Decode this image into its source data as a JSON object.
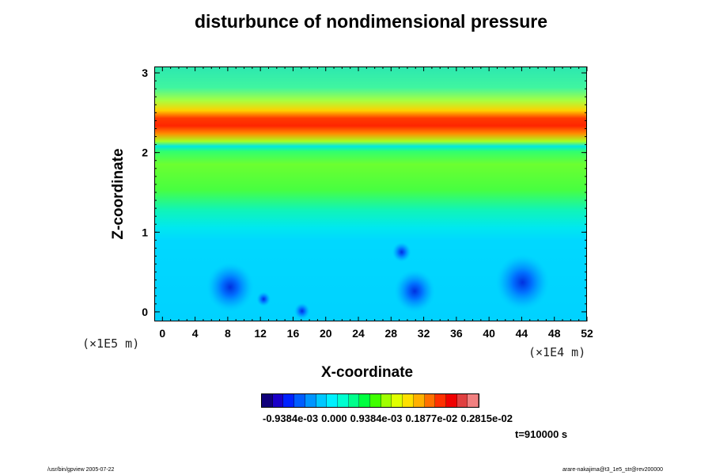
{
  "chart_data": {
    "type": "heatmap",
    "title": "disturbunce of nondimensional pressure",
    "xlabel": "X-coordinate",
    "ylabel": "Z-coordinate",
    "x_scale_note": "(×1E4 m)",
    "y_scale_note": "(×1E5 m)",
    "x_ticks": [
      0,
      4,
      8,
      12,
      16,
      20,
      24,
      28,
      32,
      36,
      40,
      44,
      48,
      52
    ],
    "y_ticks": [
      0,
      1,
      2,
      3
    ],
    "xlim": [
      -1,
      52
    ],
    "ylim": [
      -0.12,
      3.08
    ],
    "colorbar": {
      "labels": [
        "-0.9384e-03",
        "0.000",
        "0.9384e-03",
        "0.1877e-02",
        "0.2815e-02"
      ],
      "colors": [
        "#10007a",
        "#1a00c8",
        "#0022ff",
        "#005dff",
        "#0095ff",
        "#00c8ff",
        "#00f0ff",
        "#00ffd0",
        "#00ff8c",
        "#00ff40",
        "#40ff00",
        "#a0ff00",
        "#e0ff00",
        "#ffe000",
        "#ffb000",
        "#ff7000",
        "#ff3000",
        "#f00000",
        "#e04040",
        "#f08080"
      ]
    },
    "time_label": "t=910000 s",
    "features": {
      "band_center_z": 2.3,
      "band_half_width_z": 0.22,
      "lows": [
        {
          "x": 8.2,
          "z": 0.32
        },
        {
          "x": 12.3,
          "z": 0.17
        },
        {
          "x": 30.8,
          "z": 0.27
        },
        {
          "x": 29.2,
          "z": 0.76
        },
        {
          "x": 44.0,
          "z": 0.38
        },
        {
          "x": 17.0,
          "z": 0.02
        }
      ]
    }
  },
  "footer": {
    "left": "/usr/bin/gpview 2005-07-22",
    "right": "arare-nakajima@t3_1e5_str@rev200000"
  }
}
